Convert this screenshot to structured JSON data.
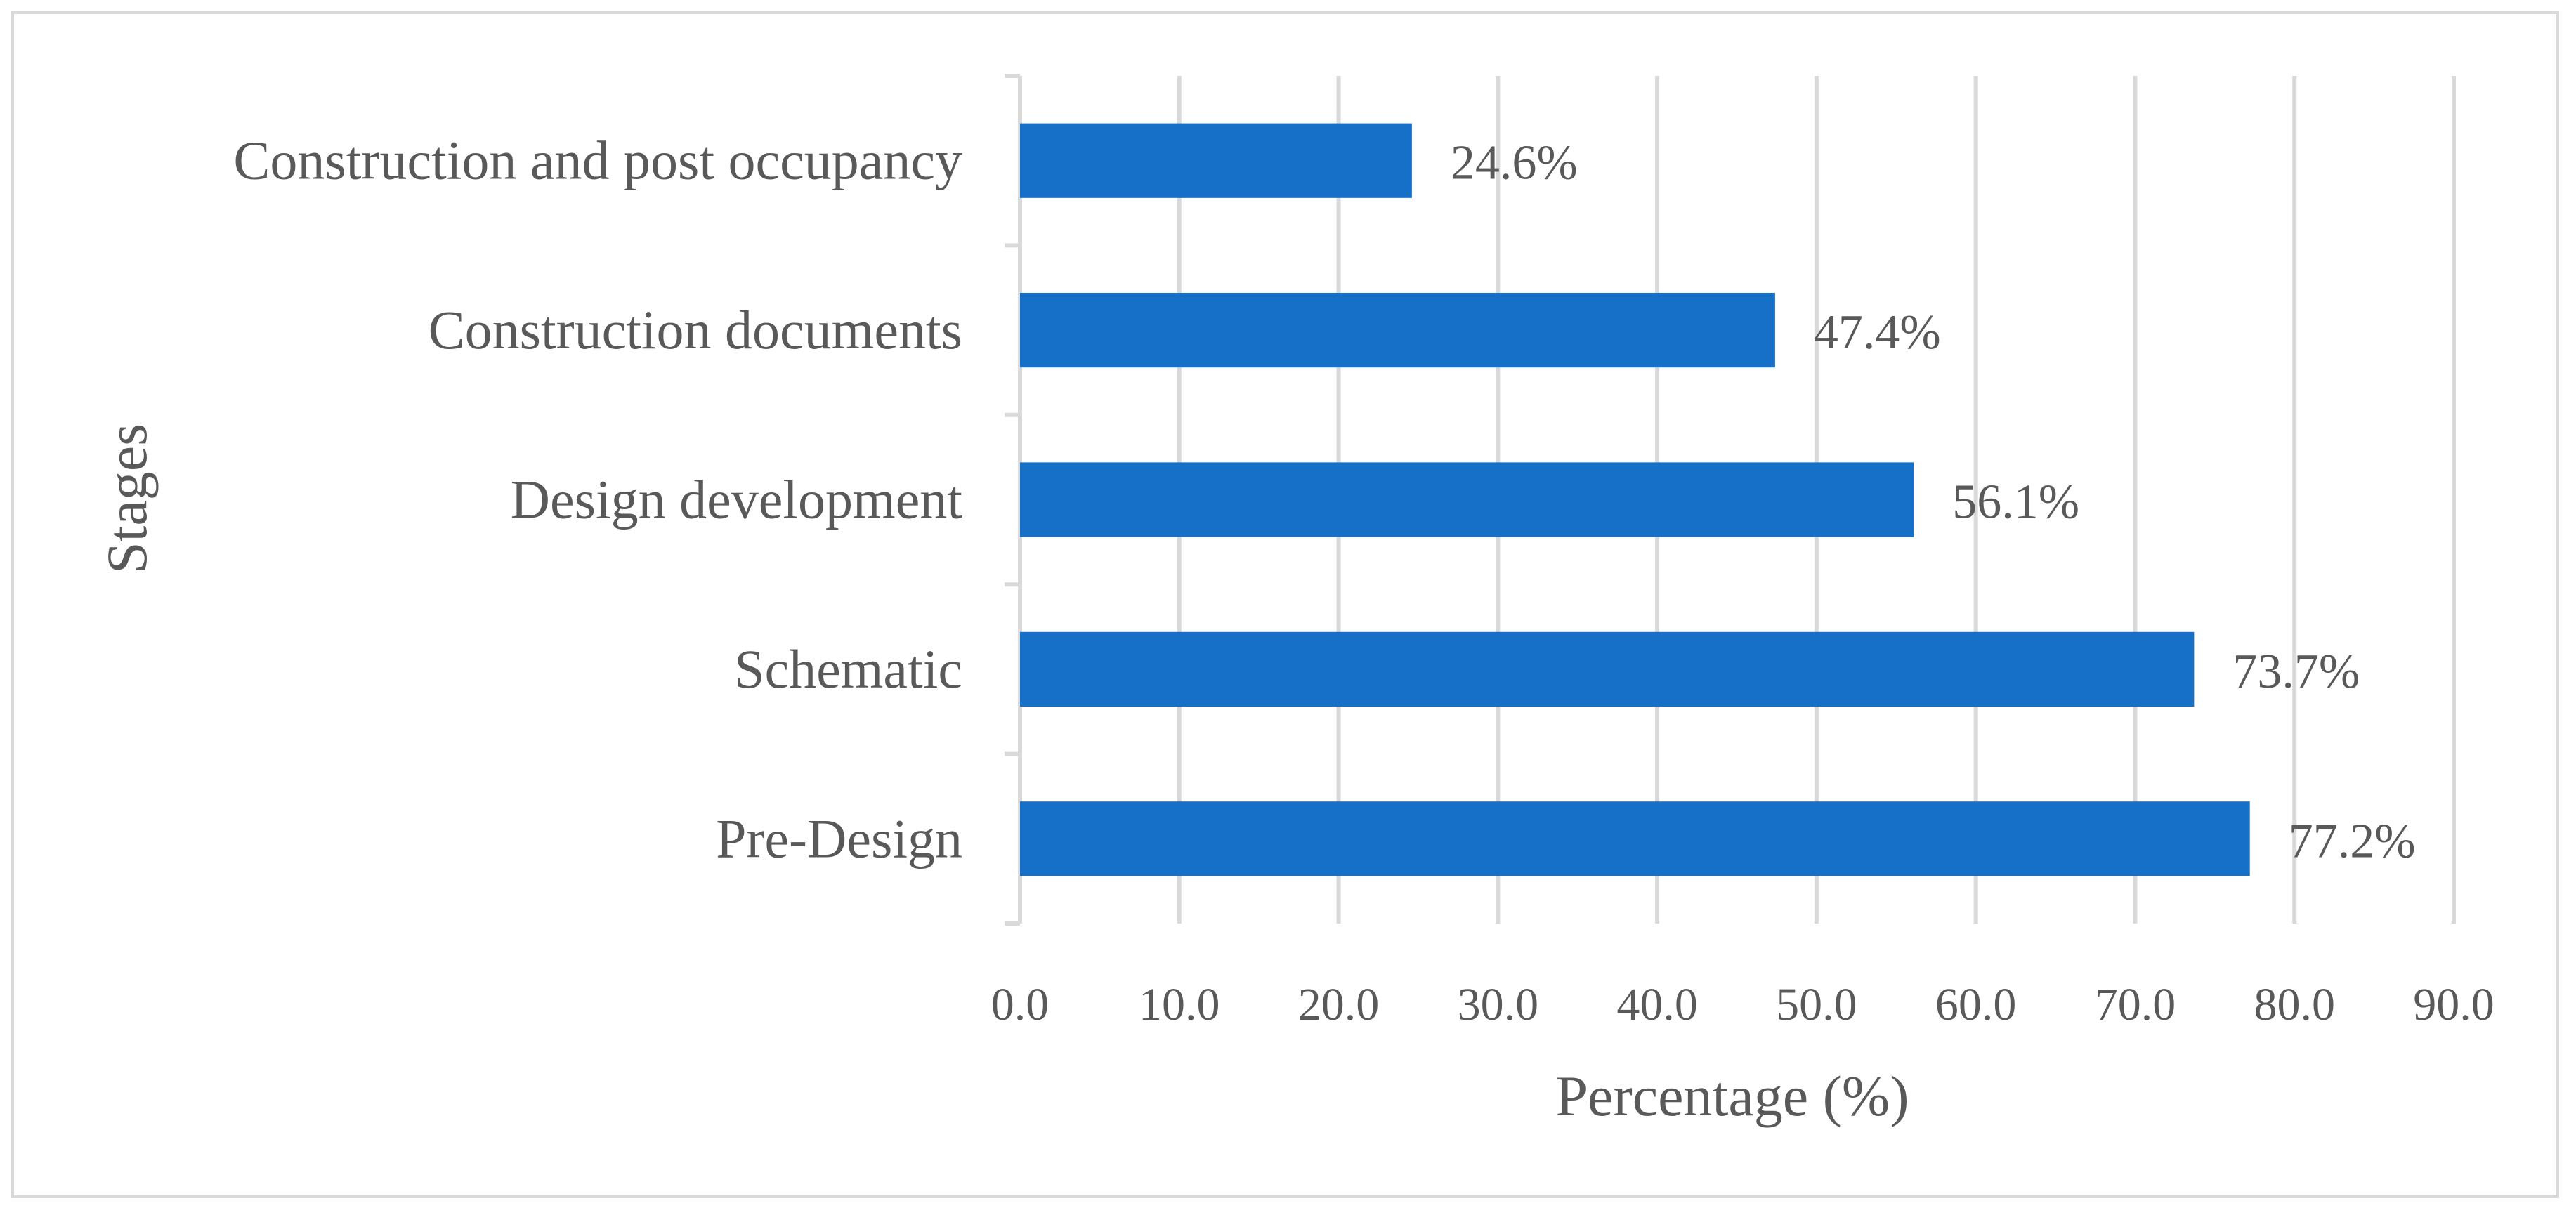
{
  "chart_data": {
    "type": "bar",
    "orientation": "horizontal",
    "title": "",
    "categories": [
      "Construction and post occupancy",
      "Construction documents",
      "Design development",
      "Schematic",
      "Pre-Design"
    ],
    "values": [
      24.6,
      47.4,
      56.1,
      73.7,
      77.2
    ],
    "data_labels": [
      "24.6%",
      "47.4%",
      "56.1%",
      "73.7%",
      "77.2%"
    ],
    "xlabel": "Percentage (%)",
    "ylabel": "Stages",
    "xlim": [
      0,
      90
    ],
    "x_ticks": [
      "0.0",
      "10.0",
      "20.0",
      "30.0",
      "40.0",
      "50.0",
      "60.0",
      "70.0",
      "80.0",
      "90.0"
    ],
    "grid": true,
    "bar_color": "#1770c8",
    "text_color": "#595959",
    "grid_color": "#d9d9d9"
  }
}
